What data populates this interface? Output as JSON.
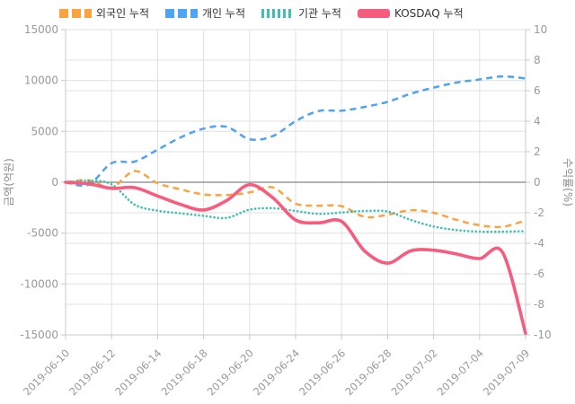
{
  "legend": {
    "items": [
      {
        "key": "foreign",
        "label": "외국인 누적",
        "color": "#F9A43F",
        "style": "dashed"
      },
      {
        "key": "individual",
        "label": "개인 누적",
        "color": "#4EA3F3",
        "style": "dashed"
      },
      {
        "key": "institution",
        "label": "기관 누적",
        "color": "#3FBFB4",
        "style": "dotted"
      },
      {
        "key": "kosdaq",
        "label": "KOSDAQ 누적",
        "color": "#F75C7E",
        "style": "solid"
      }
    ]
  },
  "axes": {
    "left": {
      "title": "금액(억원)",
      "tick_labels": [
        "15000",
        "10000",
        "5000",
        "0",
        "-5000",
        "-10000",
        "-15000"
      ],
      "ticks": [
        15000,
        10000,
        5000,
        0,
        -5000,
        -10000,
        -15000
      ]
    },
    "right": {
      "title": "수익률(%)",
      "tick_labels": [
        "10",
        "8",
        "6",
        "4",
        "2",
        "0",
        "-2",
        "-4",
        "-6",
        "-8",
        "-10"
      ],
      "ticks": [
        10,
        8,
        6,
        4,
        2,
        0,
        -2,
        -4,
        -6,
        -8,
        -10
      ]
    },
    "x": {
      "tick_labels": [
        "2019-06-10",
        "2019-06-12",
        "2019-06-14",
        "2019-06-18",
        "2019-06-20",
        "2019-06-24",
        "2019-06-26",
        "2019-06-28",
        "2019-07-02",
        "2019-07-04",
        "2019-07-09"
      ]
    }
  },
  "chart_data": {
    "type": "line",
    "x": [
      "2019-06-10",
      "2019-06-11",
      "2019-06-12",
      "2019-06-13",
      "2019-06-14",
      "2019-06-17",
      "2019-06-18",
      "2019-06-19",
      "2019-06-20",
      "2019-06-21",
      "2019-06-24",
      "2019-06-25",
      "2019-06-26",
      "2019-06-27",
      "2019-06-28",
      "2019-07-01",
      "2019-07-02",
      "2019-07-03",
      "2019-07-04",
      "2019-07-08",
      "2019-07-09"
    ],
    "x_tick_every": 2,
    "ylabel_left": "금액(억원)",
    "ylabel_right": "수익률(%)",
    "ylim_left": [
      -15000,
      15000
    ],
    "ylim_right": [
      -10,
      10
    ],
    "grid": true,
    "legend_position": "top",
    "series": [
      {
        "key": "foreign",
        "name": "외국인 누적",
        "axis": "left",
        "unit": "억원",
        "color": "#F9A43F",
        "style": "dashed",
        "values": [
          0,
          200,
          -500,
          1100,
          -100,
          -700,
          -1200,
          -1250,
          -1000,
          -500,
          -2100,
          -2300,
          -2350,
          -3400,
          -3200,
          -2750,
          -3000,
          -3700,
          -4230,
          -4380,
          -3750
        ]
      },
      {
        "key": "individual",
        "name": "개인 누적",
        "axis": "left",
        "unit": "억원",
        "color": "#4EA3F3",
        "style": "dashed",
        "values": [
          0,
          -250,
          1880,
          2030,
          3200,
          4400,
          5270,
          5450,
          4230,
          4530,
          6000,
          7000,
          7030,
          7400,
          7900,
          8700,
          9300,
          9800,
          10100,
          10400,
          10200
        ]
      },
      {
        "key": "institution",
        "name": "기관 누적",
        "axis": "left",
        "unit": "억원",
        "color": "#3FBFB4",
        "style": "dotted",
        "values": [
          0,
          150,
          -200,
          -2200,
          -2800,
          -3050,
          -3300,
          -3500,
          -2700,
          -2550,
          -2820,
          -3110,
          -2970,
          -2820,
          -2880,
          -3700,
          -4350,
          -4700,
          -4850,
          -4850,
          -4800
        ]
      },
      {
        "key": "kosdaq",
        "name": "KOSDAQ 누적",
        "axis": "right",
        "unit": "%",
        "color": "#F75C7E",
        "style": "solid",
        "values": [
          0,
          -0.1,
          -0.4,
          -0.35,
          -0.9,
          -1.45,
          -1.82,
          -1.2,
          -0.16,
          -1.0,
          -2.47,
          -2.66,
          -2.57,
          -4.5,
          -5.3,
          -4.5,
          -4.45,
          -4.7,
          -5.0,
          -4.6,
          -9.9
        ]
      }
    ]
  },
  "colors": {
    "background": "#ffffff",
    "gridline": "#e0e0e0",
    "axis_line": "#c8c8c8",
    "zero_line": "#666666",
    "tick_text": "#999999",
    "axis_title_text": "#8c8c8c",
    "legend_text": "#333333"
  }
}
